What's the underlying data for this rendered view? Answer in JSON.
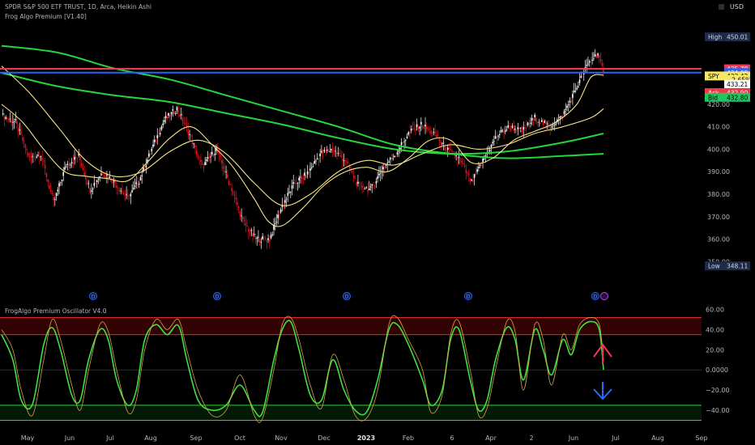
{
  "header": {
    "symbol_title": "SPDR S&P 500 ETF TRUST, 1D, Arca, Heikin Ashi",
    "indicator_title": "Frog Algo Premium [V1.40]",
    "oscillator_title": "FrogAlgo Premium Oscillator V4.0",
    "currency": "USD"
  },
  "colors": {
    "up_candle": "#ffffff",
    "down_candle": "#e3131d",
    "ma_green": "#25d63b",
    "ma_yellow": "#f7e48b",
    "high_line": "#f23658",
    "price_line": "#2962ff",
    "osc_fast": "#3ee23e",
    "osc_slow": "#d8a24a",
    "ask": "#f23645",
    "bid": "#22c55e"
  },
  "price_labels": [
    {
      "text": "High",
      "value": "450.01",
      "y": 450.01,
      "bg": "#1e2a4a",
      "fg": "#d1d4dc"
    },
    {
      "text": "",
      "value": "435.78",
      "y": 435.78,
      "bg": "#f23658",
      "fg": "#ffffff"
    },
    {
      "text": "",
      "value": "434.08",
      "y": 434.08,
      "bg": "#2962ff",
      "fg": "#ffffff"
    },
    {
      "text": "SPY",
      "value": "433.42",
      "y": 432.6,
      "bg": "#f5e663",
      "fg": "#000000"
    },
    {
      "text": "",
      "value": "−2.65%",
      "y": 430.95,
      "bg": "#f5e663",
      "fg": "#000000"
    },
    {
      "text": "",
      "value": "433.21",
      "y": 428.9,
      "bg": "#ffffff",
      "fg": "#000000"
    },
    {
      "text": "Ask",
      "value": "432.90",
      "y": 425.2,
      "bg": "#f23645",
      "fg": "#ffffff"
    },
    {
      "text": "Bid",
      "value": "432.80",
      "y": 423.1,
      "bg": "#22c55e",
      "fg": "#000000"
    },
    {
      "text": "Low",
      "value": "348.11",
      "y": 348.11,
      "bg": "#1e2a4a",
      "fg": "#d1d4dc"
    }
  ],
  "chart_data": [
    {
      "type": "candlestick",
      "title": "SPDR S&P 500 ETF TRUST, 1D, Arca, Heikin Ashi",
      "ylim": [
        344,
        452
      ],
      "y_ticks": [
        350,
        360,
        370,
        380,
        390,
        400,
        410,
        420
      ],
      "x_ticks": [
        "May",
        "Jun",
        "Jul",
        "Aug",
        "Sep",
        "Oct",
        "Nov",
        "Dec",
        "2023",
        "Feb",
        "6",
        "Apr",
        "2",
        "Jun",
        "Jul",
        "Aug",
        "Sep"
      ],
      "close_path": [
        {
          "t": 0,
          "v": 415
        },
        {
          "t": 10,
          "v": 412
        },
        {
          "t": 20,
          "v": 396
        },
        {
          "t": 28,
          "v": 398
        },
        {
          "t": 37,
          "v": 376
        },
        {
          "t": 46,
          "v": 393
        },
        {
          "t": 55,
          "v": 397
        },
        {
          "t": 63,
          "v": 382
        },
        {
          "t": 72,
          "v": 390
        },
        {
          "t": 81,
          "v": 385
        },
        {
          "t": 90,
          "v": 378
        },
        {
          "t": 98,
          "v": 386
        },
        {
          "t": 107,
          "v": 400
        },
        {
          "t": 116,
          "v": 413
        },
        {
          "t": 125,
          "v": 418
        },
        {
          "t": 133,
          "v": 408
        },
        {
          "t": 143,
          "v": 392
        },
        {
          "t": 153,
          "v": 400
        },
        {
          "t": 163,
          "v": 384
        },
        {
          "t": 172,
          "v": 368
        },
        {
          "t": 181,
          "v": 360
        },
        {
          "t": 191,
          "v": 360
        },
        {
          "t": 200,
          "v": 375
        },
        {
          "t": 209,
          "v": 385
        },
        {
          "t": 218,
          "v": 389
        },
        {
          "t": 227,
          "v": 398
        },
        {
          "t": 236,
          "v": 400
        },
        {
          "t": 245,
          "v": 395
        },
        {
          "t": 254,
          "v": 384
        },
        {
          "t": 263,
          "v": 382
        },
        {
          "t": 272,
          "v": 392
        },
        {
          "t": 281,
          "v": 398
        },
        {
          "t": 290,
          "v": 407
        },
        {
          "t": 299,
          "v": 411
        },
        {
          "t": 308,
          "v": 407
        },
        {
          "t": 317,
          "v": 400
        },
        {
          "t": 326,
          "v": 396
        },
        {
          "t": 335,
          "v": 385
        },
        {
          "t": 344,
          "v": 396
        },
        {
          "t": 353,
          "v": 406
        },
        {
          "t": 362,
          "v": 410
        },
        {
          "t": 371,
          "v": 408
        },
        {
          "t": 380,
          "v": 414
        },
        {
          "t": 390,
          "v": 410
        },
        {
          "t": 399,
          "v": 414
        },
        {
          "t": 408,
          "v": 425
        },
        {
          "t": 418,
          "v": 438
        },
        {
          "t": 425,
          "v": 443
        },
        {
          "t": 429,
          "v": 433.4
        }
      ],
      "moving_averages": [
        {
          "color": "green",
          "points": [
            [
              0,
              446
            ],
            [
              40,
              443
            ],
            [
              80,
              436
            ],
            [
              120,
              431
            ],
            [
              160,
              424
            ],
            [
              200,
              417
            ],
            [
              240,
              410
            ],
            [
              280,
              402
            ],
            [
              320,
              398
            ],
            [
              360,
              396
            ],
            [
              400,
              397
            ],
            [
              429,
              398
            ]
          ]
        },
        {
          "color": "green",
          "points": [
            [
              0,
              434
            ],
            [
              40,
              428
            ],
            [
              80,
              424
            ],
            [
              120,
              421
            ],
            [
              160,
              416
            ],
            [
              200,
              411
            ],
            [
              240,
              405
            ],
            [
              280,
              400
            ],
            [
              320,
              398
            ],
            [
              360,
              399
            ],
            [
              400,
              403
            ],
            [
              429,
              407
            ]
          ]
        },
        {
          "color": "yellow",
          "points": [
            [
              0,
              437
            ],
            [
              20,
              425
            ],
            [
              40,
              410
            ],
            [
              60,
              395
            ],
            [
              80,
              388
            ],
            [
              100,
              390
            ],
            [
              120,
              399
            ],
            [
              140,
              404
            ],
            [
              160,
              398
            ],
            [
              180,
              385
            ],
            [
              200,
              375
            ],
            [
              220,
              380
            ],
            [
              240,
              390
            ],
            [
              260,
              395
            ],
            [
              280,
              393
            ],
            [
              300,
              398
            ],
            [
              320,
              402
            ],
            [
              340,
              400
            ],
            [
              360,
              402
            ],
            [
              380,
              407
            ],
            [
              400,
              410
            ],
            [
              420,
              414
            ],
            [
              429,
              418
            ]
          ]
        },
        {
          "color": "yellow",
          "points": [
            [
              0,
              420
            ],
            [
              15,
              412
            ],
            [
              30,
              400
            ],
            [
              45,
              390
            ],
            [
              60,
              388
            ],
            [
              75,
              387
            ],
            [
              90,
              386
            ],
            [
              105,
              395
            ],
            [
              120,
              405
            ],
            [
              135,
              410
            ],
            [
              150,
              402
            ],
            [
              165,
              392
            ],
            [
              180,
              378
            ],
            [
              190,
              368
            ],
            [
              200,
              366
            ],
            [
              215,
              374
            ],
            [
              230,
              384
            ],
            [
              245,
              390
            ],
            [
              260,
              392
            ],
            [
              275,
              390
            ],
            [
              290,
              396
            ],
            [
              305,
              404
            ],
            [
              320,
              404
            ],
            [
              335,
              394
            ],
            [
              350,
              396
            ],
            [
              365,
              404
            ],
            [
              380,
              408
            ],
            [
              395,
              412
            ],
            [
              410,
              420
            ],
            [
              420,
              432
            ],
            [
              429,
              433
            ]
          ]
        }
      ],
      "reference_lines": [
        {
          "value": 435.78,
          "color": "red"
        },
        {
          "value": 434.08,
          "color": "blue"
        }
      ]
    },
    {
      "type": "line",
      "title": "FrogAlgo Premium Oscillator V4.0",
      "ylim": [
        -52,
        62
      ],
      "y_ticks": [
        60,
        40,
        20,
        0,
        -20,
        -40
      ],
      "y_tick_labels": [
        "60.00",
        "40.00",
        "20.00",
        "0.0000",
        "−20.00",
        "−40.00"
      ],
      "bands": [
        {
          "value": 52,
          "color": "red"
        },
        {
          "value": 35,
          "color": "red"
        },
        {
          "value": -35,
          "color": "green"
        },
        {
          "value": -50,
          "color": "green"
        }
      ],
      "series": [
        {
          "color": "green",
          "points": [
            [
              0,
              35
            ],
            [
              8,
              10
            ],
            [
              14,
              -30
            ],
            [
              22,
              -34
            ],
            [
              30,
              25
            ],
            [
              36,
              42
            ],
            [
              42,
              20
            ],
            [
              50,
              -25
            ],
            [
              56,
              -30
            ],
            [
              62,
              10
            ],
            [
              70,
              40
            ],
            [
              76,
              30
            ],
            [
              82,
              -10
            ],
            [
              90,
              -35
            ],
            [
              96,
              -20
            ],
            [
              102,
              30
            ],
            [
              110,
              45
            ],
            [
              118,
              35
            ],
            [
              126,
              44
            ],
            [
              132,
              10
            ],
            [
              140,
              -30
            ],
            [
              150,
              -40
            ],
            [
              160,
              -35
            ],
            [
              170,
              -15
            ],
            [
              180,
              -40
            ],
            [
              186,
              -42
            ],
            [
              194,
              10
            ],
            [
              200,
              40
            ],
            [
              206,
              48
            ],
            [
              212,
              20
            ],
            [
              220,
              -25
            ],
            [
              228,
              -30
            ],
            [
              236,
              10
            ],
            [
              244,
              -20
            ],
            [
              252,
              -40
            ],
            [
              260,
              -42
            ],
            [
              268,
              -10
            ],
            [
              276,
              40
            ],
            [
              282,
              45
            ],
            [
              290,
              25
            ],
            [
              300,
              -10
            ],
            [
              306,
              -35
            ],
            [
              314,
              -20
            ],
            [
              320,
              30
            ],
            [
              326,
              40
            ],
            [
              334,
              -10
            ],
            [
              340,
              -40
            ],
            [
              346,
              -30
            ],
            [
              352,
              10
            ],
            [
              360,
              42
            ],
            [
              366,
              30
            ],
            [
              372,
              -10
            ],
            [
              380,
              40
            ],
            [
              386,
              20
            ],
            [
              392,
              -5
            ],
            [
              400,
              30
            ],
            [
              406,
              15
            ],
            [
              412,
              40
            ],
            [
              420,
              48
            ],
            [
              426,
              40
            ],
            [
              429,
              0
            ]
          ]
        },
        {
          "color": "orange",
          "points": [
            [
              0,
              40
            ],
            [
              8,
              20
            ],
            [
              14,
              -20
            ],
            [
              22,
              -45
            ],
            [
              30,
              10
            ],
            [
              36,
              50
            ],
            [
              42,
              30
            ],
            [
              50,
              -15
            ],
            [
              56,
              -40
            ],
            [
              62,
              0
            ],
            [
              70,
              45
            ],
            [
              76,
              38
            ],
            [
              82,
              0
            ],
            [
              90,
              -42
            ],
            [
              96,
              -30
            ],
            [
              102,
              20
            ],
            [
              110,
              50
            ],
            [
              118,
              40
            ],
            [
              126,
              50
            ],
            [
              132,
              20
            ],
            [
              140,
              -20
            ],
            [
              150,
              -45
            ],
            [
              160,
              -40
            ],
            [
              170,
              -5
            ],
            [
              180,
              -45
            ],
            [
              186,
              -48
            ],
            [
              194,
              0
            ],
            [
              200,
              45
            ],
            [
              206,
              52
            ],
            [
              212,
              30
            ],
            [
              220,
              -15
            ],
            [
              228,
              -38
            ],
            [
              236,
              15
            ],
            [
              244,
              -10
            ],
            [
              252,
              -45
            ],
            [
              260,
              -48
            ],
            [
              268,
              -20
            ],
            [
              276,
              45
            ],
            [
              282,
              52
            ],
            [
              290,
              30
            ],
            [
              300,
              0
            ],
            [
              306,
              -42
            ],
            [
              314,
              -25
            ],
            [
              320,
              35
            ],
            [
              326,
              48
            ],
            [
              334,
              0
            ],
            [
              340,
              -45
            ],
            [
              346,
              -38
            ],
            [
              352,
              0
            ],
            [
              360,
              48
            ],
            [
              366,
              38
            ],
            [
              372,
              -20
            ],
            [
              380,
              45
            ],
            [
              386,
              30
            ],
            [
              392,
              -15
            ],
            [
              400,
              35
            ],
            [
              406,
              20
            ],
            [
              412,
              45
            ],
            [
              420,
              52
            ],
            [
              426,
              45
            ],
            [
              429,
              10
            ]
          ]
        }
      ],
      "signals": [
        {
          "type": "up-arrow",
          "color": "red"
        },
        {
          "type": "down-arrow",
          "color": "blue"
        }
      ]
    }
  ]
}
